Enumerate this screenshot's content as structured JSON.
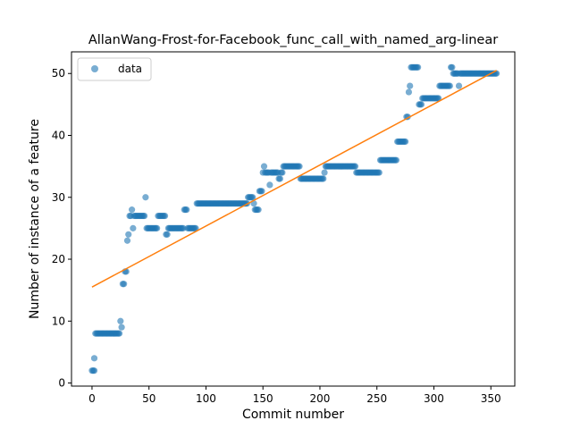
{
  "chart_data": {
    "type": "scatter",
    "title": "AllanWang-Frost-for-Facebook_func_call_with_named_arg-linear",
    "xlabel": "Commit number",
    "ylabel": "Number of instance of a feature",
    "xlim": [
      -18,
      371
    ],
    "ylim": [
      -0.5,
      53.5
    ],
    "xticks": [
      0,
      50,
      100,
      150,
      200,
      250,
      300,
      350
    ],
    "yticks": [
      0,
      10,
      20,
      30,
      40,
      50
    ],
    "legend": {
      "placement": "top-left",
      "entries": [
        "data"
      ]
    },
    "grid": false,
    "colors": {
      "data": "#1f77b4",
      "fit": "#ff7f0e"
    },
    "series": [
      {
        "name": "data",
        "style": "markers",
        "segments": [
          [
            0,
            2,
            2
          ],
          [
            2,
            2,
            4
          ],
          [
            3,
            3,
            8
          ],
          [
            4,
            24,
            8
          ],
          [
            25,
            25,
            10
          ],
          [
            26,
            26,
            9
          ],
          [
            27,
            28,
            16
          ],
          [
            29,
            30,
            18
          ],
          [
            31,
            31,
            23
          ],
          [
            32,
            32,
            24
          ],
          [
            33,
            34,
            27
          ],
          [
            35,
            35,
            28
          ],
          [
            36,
            36,
            25
          ],
          [
            37,
            46,
            27
          ],
          [
            47,
            47,
            30
          ],
          [
            48,
            57,
            25
          ],
          [
            58,
            64,
            27
          ],
          [
            65,
            66,
            24
          ],
          [
            67,
            80,
            25
          ],
          [
            81,
            83,
            28
          ],
          [
            84,
            91,
            25
          ],
          [
            92,
            136,
            29
          ],
          [
            137,
            141,
            30
          ],
          [
            142,
            142,
            29
          ],
          [
            143,
            146,
            28
          ],
          [
            147,
            149,
            31
          ],
          [
            150,
            150,
            34
          ],
          [
            151,
            151,
            35
          ],
          [
            152,
            155,
            34
          ],
          [
            156,
            156,
            32
          ],
          [
            157,
            163,
            34
          ],
          [
            164,
            165,
            33
          ],
          [
            166,
            167,
            34
          ],
          [
            168,
            182,
            35
          ],
          [
            183,
            203,
            33
          ],
          [
            204,
            204,
            34
          ],
          [
            205,
            231,
            35
          ],
          [
            232,
            252,
            34
          ],
          [
            253,
            267,
            36
          ],
          [
            268,
            275,
            39
          ],
          [
            276,
            277,
            43
          ],
          [
            278,
            278,
            47
          ],
          [
            279,
            279,
            48
          ],
          [
            280,
            286,
            51
          ],
          [
            287,
            289,
            45
          ],
          [
            290,
            304,
            46
          ],
          [
            305,
            314,
            48
          ],
          [
            315,
            316,
            51
          ],
          [
            317,
            321,
            50
          ],
          [
            322,
            322,
            48
          ],
          [
            323,
            355,
            50
          ]
        ]
      },
      {
        "name": "fit",
        "style": "line",
        "x": [
          0,
          355
        ],
        "y": [
          15.5,
          50.5
        ]
      }
    ]
  }
}
